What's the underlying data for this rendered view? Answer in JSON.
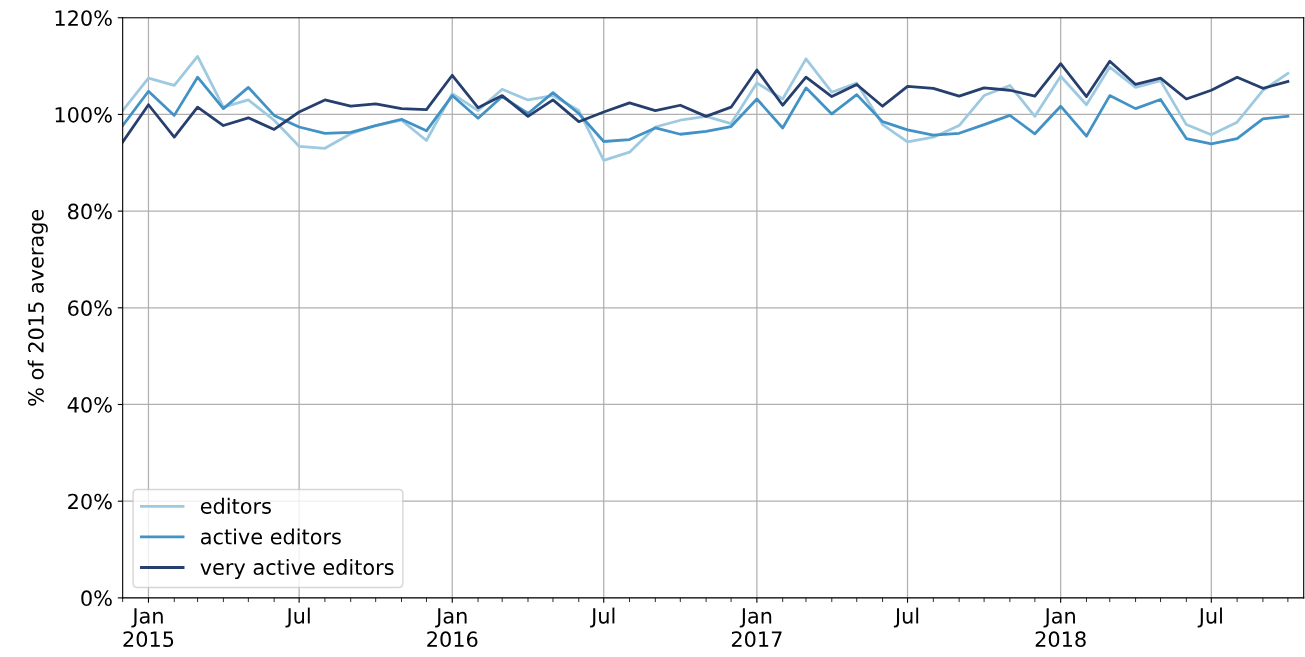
{
  "chart_data": {
    "type": "line",
    "ylabel": "% of 2015 average",
    "x": [
      "2014-12",
      "2015-01",
      "2015-02",
      "2015-03",
      "2015-04",
      "2015-05",
      "2015-06",
      "2015-07",
      "2015-08",
      "2015-09",
      "2015-10",
      "2015-11",
      "2015-12",
      "2016-01",
      "2016-02",
      "2016-03",
      "2016-04",
      "2016-05",
      "2016-06",
      "2016-07",
      "2016-08",
      "2016-09",
      "2016-10",
      "2016-11",
      "2016-12",
      "2017-01",
      "2017-02",
      "2017-03",
      "2017-04",
      "2017-05",
      "2017-06",
      "2017-07",
      "2017-08",
      "2017-09",
      "2017-10",
      "2017-11",
      "2017-12",
      "2018-01",
      "2018-02",
      "2018-03",
      "2018-04",
      "2018-05",
      "2018-06",
      "2018-07",
      "2018-08",
      "2018-09",
      "2018-10"
    ],
    "series": [
      {
        "name": "editors",
        "color": "#9ecae1",
        "values": [
          100.8,
          107.5,
          106,
          112,
          101.5,
          103,
          98.8,
          93.4,
          93,
          96,
          97.7,
          98.8,
          94.6,
          104.3,
          100.8,
          105.2,
          103,
          103.9,
          100.8,
          90.5,
          92.2,
          97.4,
          98.8,
          99.6,
          98.1,
          106.5,
          103.2,
          111.5,
          104.6,
          106.5,
          97.9,
          94.3,
          95.3,
          97.7,
          103.9,
          106,
          99.6,
          107.9,
          102,
          109.8,
          105.6,
          107,
          97.9,
          95.8,
          98.4,
          105,
          108.5
        ]
      },
      {
        "name": "active editors",
        "color": "#4292c6",
        "values": [
          97.7,
          104.8,
          99.8,
          107.7,
          101.2,
          105.6,
          99.8,
          97.4,
          96.1,
          96.3,
          97.7,
          99,
          96.6,
          103.9,
          99.2,
          103.7,
          100.2,
          104.5,
          100.2,
          94.4,
          94.8,
          97.2,
          95.9,
          96.5,
          97.5,
          103.2,
          97.2,
          105.5,
          100.1,
          104.1,
          98.5,
          96.8,
          95.7,
          96.1,
          97.9,
          99.8,
          96,
          101.7,
          95.5,
          103.9,
          101.2,
          103.1,
          95,
          93.9,
          95,
          99.1,
          99.6
        ]
      },
      {
        "name": "very active editors",
        "color": "#273f6e",
        "values": [
          94.3,
          102,
          95.3,
          101.5,
          97.7,
          99.3,
          96.9,
          100.5,
          103,
          101.7,
          102.2,
          101.2,
          101,
          108.1,
          101.4,
          103.9,
          99.6,
          103,
          98.5,
          100.5,
          102.4,
          100.8,
          101.9,
          99.6,
          101.5,
          109.2,
          101.9,
          107.7,
          103.7,
          106.2,
          101.7,
          105.8,
          105.4,
          103.8,
          105.5,
          105,
          103.8,
          110.5,
          103.7,
          111,
          106.2,
          107.5,
          103.2,
          105,
          107.7,
          105.4,
          106.8
        ]
      }
    ],
    "xlim": [
      "2014-12-01",
      "2018-10-20"
    ],
    "xticks": [
      {
        "value": "2015-01",
        "label": "Jan\n2015"
      },
      {
        "value": "2015-07",
        "label": "Jul"
      },
      {
        "value": "2016-01",
        "label": "Jan\n2016"
      },
      {
        "value": "2016-07",
        "label": "Jul"
      },
      {
        "value": "2017-01",
        "label": "Jan\n2017"
      },
      {
        "value": "2017-07",
        "label": "Jul"
      },
      {
        "value": "2018-01",
        "label": "Jan\n2018"
      },
      {
        "value": "2018-07",
        "label": "Jul"
      }
    ],
    "ylim": [
      0,
      120
    ],
    "yticks": [
      {
        "value": 0,
        "label": "0%"
      },
      {
        "value": 20,
        "label": "20%"
      },
      {
        "value": 40,
        "label": "40%"
      },
      {
        "value": 60,
        "label": "60%"
      },
      {
        "value": 80,
        "label": "80%"
      },
      {
        "value": 100,
        "label": "100%"
      },
      {
        "value": 120,
        "label": "120%"
      }
    ],
    "grid": true,
    "legend": "lower left",
    "marker": "none",
    "line_style": "solid"
  }
}
